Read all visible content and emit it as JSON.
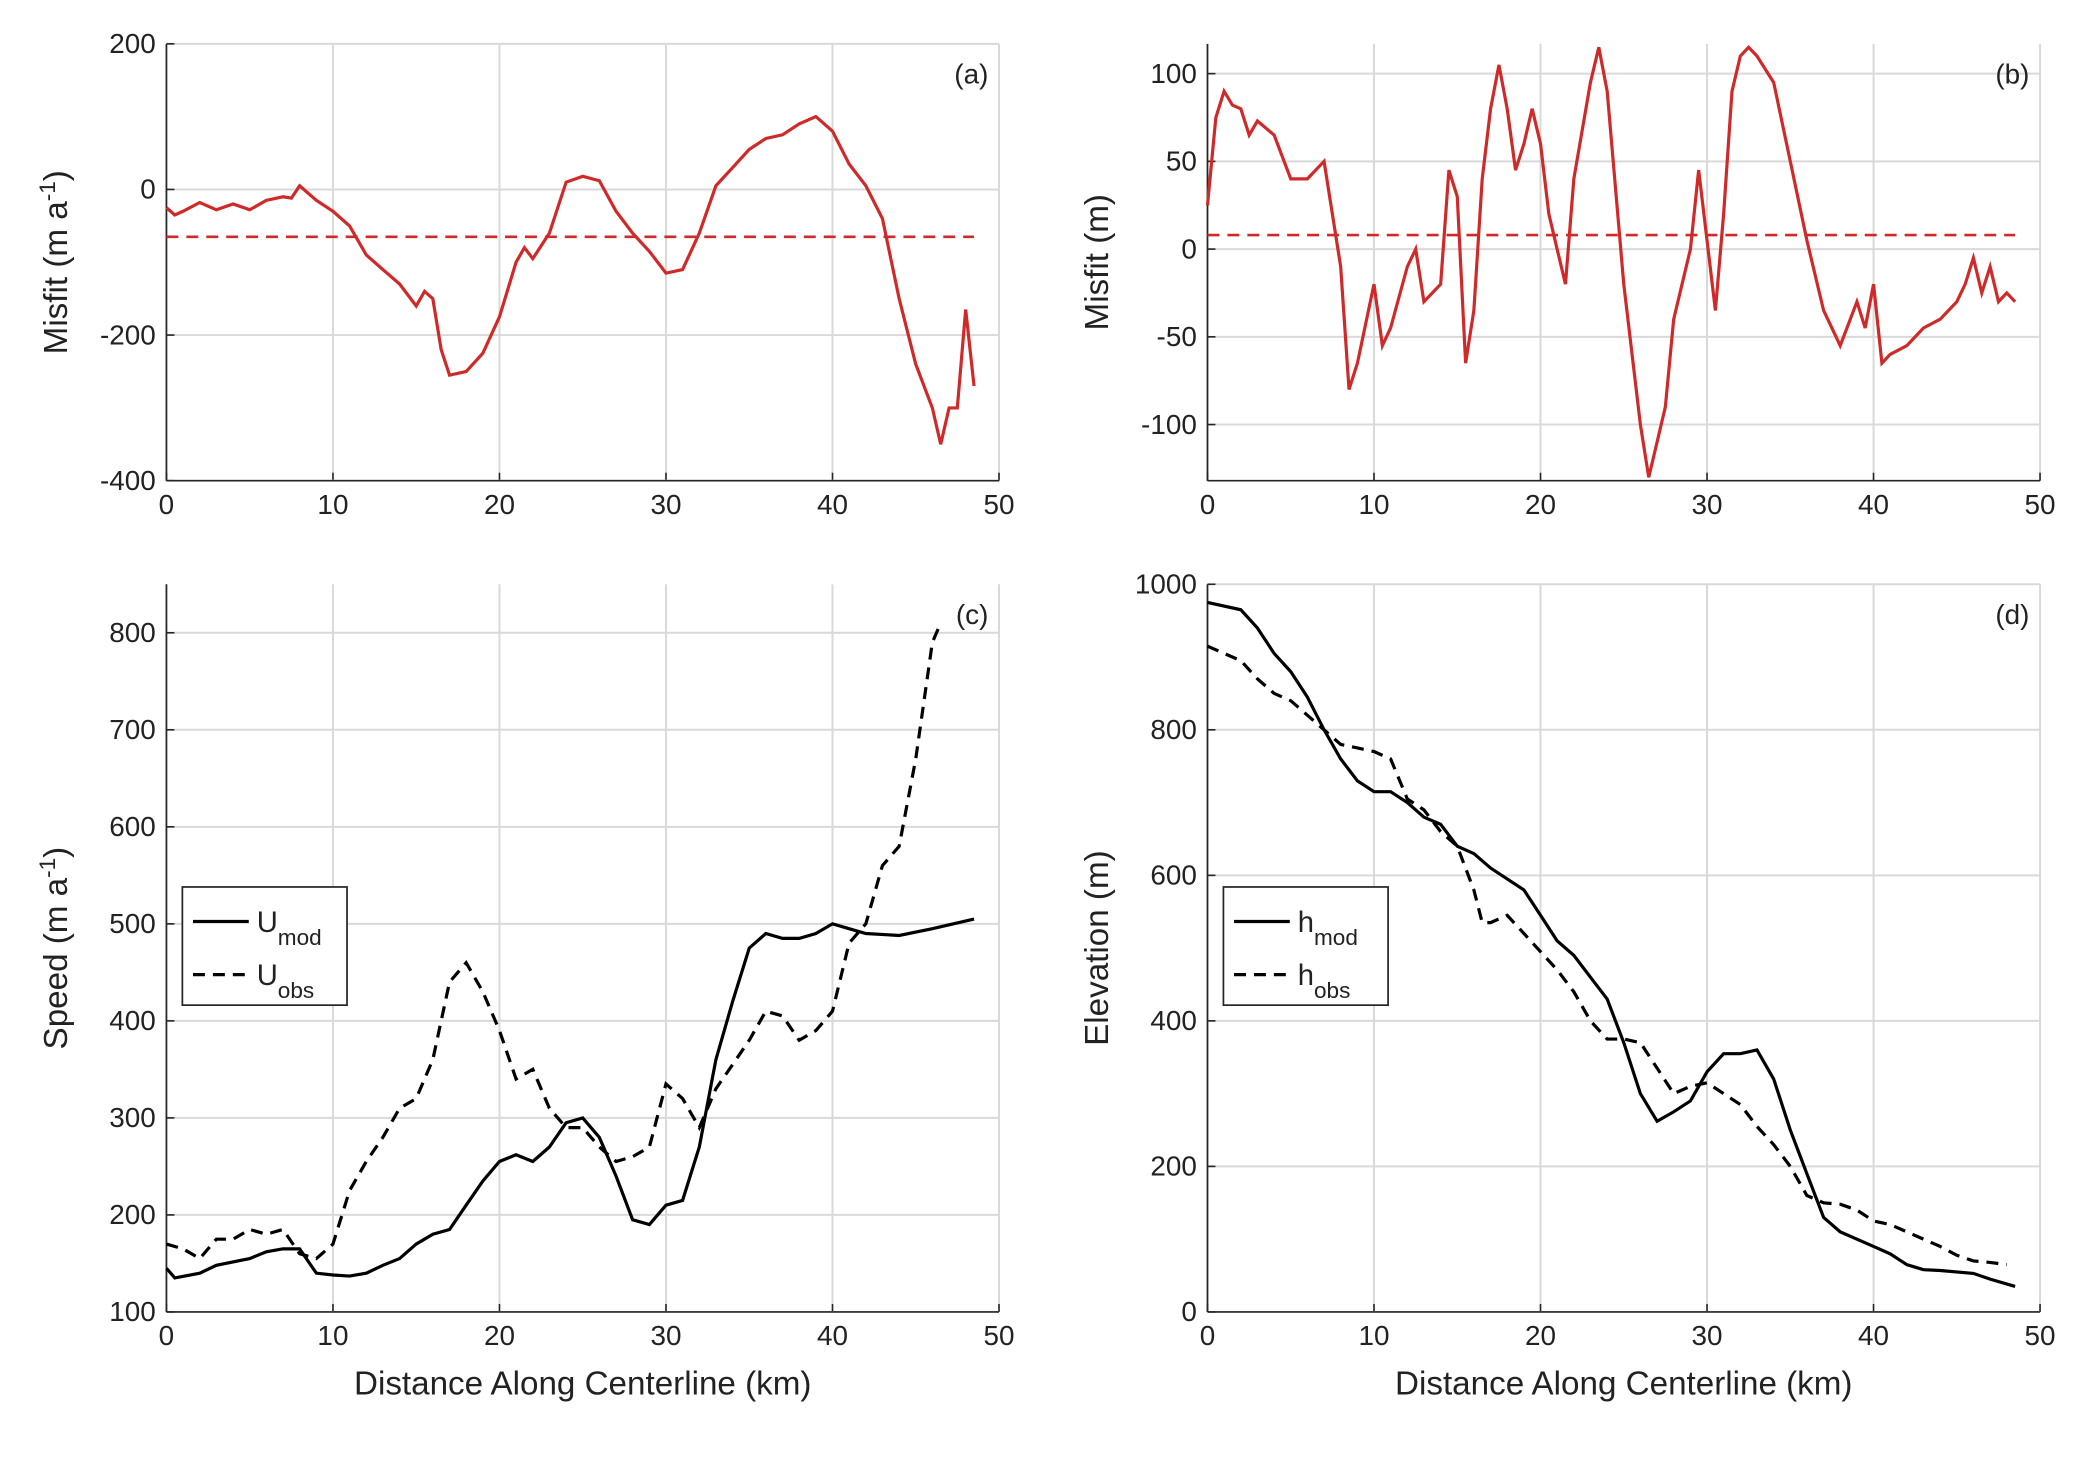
{
  "chart_data": [
    {
      "type": "line",
      "annotation": "(a)",
      "ylabel": [
        "Misfit (m a",
        "-1",
        ")"
      ],
      "xlim": [
        0,
        50
      ],
      "xticks": [
        0,
        10,
        20,
        30,
        40,
        50
      ],
      "ylim": [
        -400,
        200
      ],
      "yticks": [
        -400,
        -200,
        0,
        200
      ],
      "grid": true,
      "hline": {
        "value": -65,
        "color": "#cf2a2a",
        "dash": true
      },
      "series": [
        {
          "color": "#cf2a2a",
          "dash": false,
          "x": [
            0,
            0.5,
            1,
            2,
            3,
            4,
            5,
            6,
            7,
            7.5,
            8,
            9,
            10,
            11,
            12,
            13,
            14,
            15,
            15.5,
            16,
            16.5,
            17,
            18,
            19,
            20,
            21,
            21.5,
            22,
            23,
            24,
            25,
            26,
            27,
            28,
            29,
            30,
            31,
            32,
            33,
            34,
            35,
            36,
            37,
            38,
            39,
            40,
            41,
            42,
            43,
            44,
            45,
            46,
            46.5,
            47,
            47.5,
            48,
            48.5
          ],
          "values": [
            -25,
            -35,
            -30,
            -18,
            -28,
            -20,
            -28,
            -15,
            -10,
            -12,
            5,
            -15,
            -30,
            -50,
            -90,
            -110,
            -130,
            -160,
            -140,
            -150,
            -220,
            -255,
            -250,
            -225,
            -175,
            -100,
            -80,
            -95,
            -60,
            10,
            18,
            12,
            -30,
            -60,
            -85,
            -115,
            -110,
            -60,
            5,
            30,
            55,
            70,
            75,
            90,
            100,
            80,
            35,
            5,
            -40,
            -150,
            -240,
            -300,
            -350,
            -300,
            -300,
            -165,
            -270
          ]
        }
      ]
    },
    {
      "type": "line",
      "annotation": "(b)",
      "ylabel": [
        "Misfit (m)"
      ],
      "xlim": [
        0,
        50
      ],
      "xticks": [
        0,
        10,
        20,
        30,
        40,
        50
      ],
      "ylim": [
        -132,
        117
      ],
      "yticks": [
        -100,
        -50,
        0,
        50,
        100
      ],
      "grid": true,
      "hline": {
        "value": 8,
        "color": "#cf2a2a",
        "dash": true
      },
      "series": [
        {
          "color": "#cf2a2a",
          "dash": false,
          "x": [
            0,
            0.5,
            1,
            1.5,
            2,
            2.5,
            3,
            4,
            5,
            6,
            7,
            8,
            8.5,
            9,
            10,
            10.5,
            11,
            12,
            12.5,
            13,
            14,
            14.5,
            15,
            15.5,
            16,
            16.5,
            17,
            17.5,
            18,
            18.5,
            19,
            19.5,
            20,
            20.5,
            21,
            21.5,
            22,
            23,
            23.5,
            24,
            25,
            26,
            26.5,
            27,
            27.5,
            28,
            29,
            29.5,
            30,
            30.5,
            31,
            31.5,
            32,
            32.5,
            33,
            34,
            35,
            36,
            37,
            38,
            39,
            39.5,
            40,
            40.5,
            41,
            42,
            43,
            44,
            45,
            45.5,
            46,
            46.5,
            47,
            47.5,
            48,
            48.5
          ],
          "values": [
            25,
            75,
            90,
            82,
            80,
            65,
            73,
            65,
            40,
            40,
            50,
            -10,
            -80,
            -65,
            -20,
            -55,
            -45,
            -10,
            0,
            -30,
            -20,
            45,
            30,
            -65,
            -35,
            40,
            80,
            105,
            80,
            45,
            60,
            80,
            60,
            20,
            0,
            -20,
            40,
            95,
            115,
            90,
            -20,
            -100,
            -130,
            -110,
            -90,
            -40,
            0,
            45,
            5,
            -35,
            20,
            90,
            110,
            115,
            110,
            95,
            50,
            5,
            -35,
            -55,
            -30,
            -45,
            -20,
            -65,
            -60,
            -55,
            -45,
            -40,
            -30,
            -20,
            -5,
            -25,
            -10,
            -30,
            -25,
            -30
          ]
        }
      ]
    },
    {
      "type": "line",
      "annotation": "(c)",
      "ylabel": [
        "Speed (m a",
        "-1",
        ")"
      ],
      "xlabel": "Distance Along Centerline (km)",
      "xlim": [
        0,
        50
      ],
      "xticks": [
        0,
        10,
        20,
        30,
        40,
        50
      ],
      "ylim": [
        100,
        850
      ],
      "yticks": [
        100,
        200,
        300,
        400,
        500,
        600,
        700,
        800
      ],
      "grid": true,
      "legend": "west",
      "series": [
        {
          "name": "U",
          "subscript": "mod",
          "color": "#000000",
          "dash": false,
          "x": [
            0,
            0.5,
            2,
            3,
            5,
            6,
            7,
            8,
            9,
            10,
            11,
            12,
            13,
            14,
            15,
            16,
            17,
            18,
            19,
            20,
            21,
            22,
            23,
            24,
            25,
            26,
            27,
            28,
            29,
            30,
            31,
            32,
            33,
            34,
            35,
            36,
            37,
            38,
            39,
            40,
            41,
            42,
            44,
            46,
            48.5
          ],
          "values": [
            145,
            135,
            140,
            148,
            155,
            162,
            165,
            165,
            140,
            138,
            137,
            140,
            148,
            155,
            170,
            180,
            185,
            210,
            235,
            255,
            262,
            255,
            270,
            295,
            300,
            280,
            240,
            195,
            190,
            210,
            215,
            270,
            360,
            420,
            475,
            490,
            485,
            485,
            490,
            500,
            495,
            490,
            488,
            495,
            505
          ]
        },
        {
          "name": "U",
          "subscript": "obs",
          "color": "#000000",
          "dash": true,
          "x": [
            0,
            1,
            2,
            3,
            4,
            5,
            6,
            7,
            8,
            9,
            10,
            11,
            12,
            13,
            14,
            15,
            16,
            17,
            18,
            19,
            20,
            21,
            22,
            23,
            24,
            25,
            26,
            27,
            28,
            29,
            30,
            31,
            32,
            33,
            34,
            35,
            36,
            37,
            38,
            39,
            40,
            41,
            42,
            43,
            44,
            45,
            46,
            46.5
          ],
          "values": [
            170,
            165,
            155,
            175,
            175,
            185,
            180,
            185,
            160,
            155,
            170,
            225,
            255,
            280,
            310,
            320,
            360,
            440,
            460,
            430,
            390,
            340,
            350,
            310,
            290,
            290,
            270,
            255,
            260,
            270,
            335,
            320,
            290,
            330,
            355,
            380,
            410,
            405,
            380,
            390,
            410,
            480,
            500,
            560,
            580,
            670,
            790,
            810
          ]
        }
      ]
    },
    {
      "type": "line",
      "annotation": "(d)",
      "ylabel": [
        "Elevation (m)"
      ],
      "xlabel": "Distance Along Centerline (km)",
      "xlim": [
        0,
        50
      ],
      "xticks": [
        0,
        10,
        20,
        30,
        40,
        50
      ],
      "ylim": [
        0,
        1000
      ],
      "yticks": [
        0,
        200,
        400,
        600,
        800,
        1000
      ],
      "grid": true,
      "legend": "west",
      "series": [
        {
          "name": "h",
          "subscript": "mod",
          "color": "#000000",
          "dash": false,
          "x": [
            0,
            2,
            3,
            4,
            5,
            6,
            7,
            8,
            9,
            10,
            11,
            12,
            13,
            14,
            15,
            16,
            17,
            18,
            19,
            20,
            21,
            22,
            23,
            24,
            25,
            26,
            27,
            28,
            29,
            30,
            31,
            32,
            33,
            34,
            35,
            36,
            37,
            38,
            39,
            40,
            41,
            42,
            43,
            44,
            46,
            47,
            48.5
          ],
          "values": [
            975,
            965,
            940,
            905,
            880,
            845,
            800,
            760,
            730,
            715,
            715,
            700,
            680,
            670,
            640,
            630,
            610,
            595,
            580,
            545,
            510,
            490,
            460,
            430,
            370,
            300,
            262,
            275,
            290,
            330,
            355,
            355,
            360,
            320,
            250,
            190,
            130,
            110,
            100,
            90,
            80,
            65,
            58,
            57,
            53,
            45,
            35
          ]
        },
        {
          "name": "h",
          "subscript": "obs",
          "color": "#000000",
          "dash": true,
          "x": [
            0,
            1,
            2,
            3,
            4,
            5,
            6,
            7,
            8,
            9,
            10,
            11,
            12,
            13,
            14,
            15,
            16,
            16.5,
            17,
            18,
            19,
            20,
            21,
            22,
            23,
            24,
            25,
            26,
            27,
            28,
            29,
            30,
            31,
            32,
            33,
            34,
            35,
            36,
            37,
            38,
            39,
            40,
            41,
            42,
            43,
            44,
            45,
            46,
            47,
            48
          ],
          "values": [
            915,
            905,
            895,
            870,
            850,
            840,
            820,
            800,
            780,
            775,
            770,
            760,
            705,
            690,
            660,
            640,
            580,
            535,
            535,
            545,
            520,
            495,
            470,
            440,
            400,
            375,
            375,
            370,
            335,
            300,
            310,
            315,
            300,
            285,
            255,
            230,
            200,
            160,
            150,
            148,
            140,
            125,
            120,
            110,
            100,
            90,
            78,
            70,
            68,
            65
          ]
        }
      ]
    }
  ]
}
